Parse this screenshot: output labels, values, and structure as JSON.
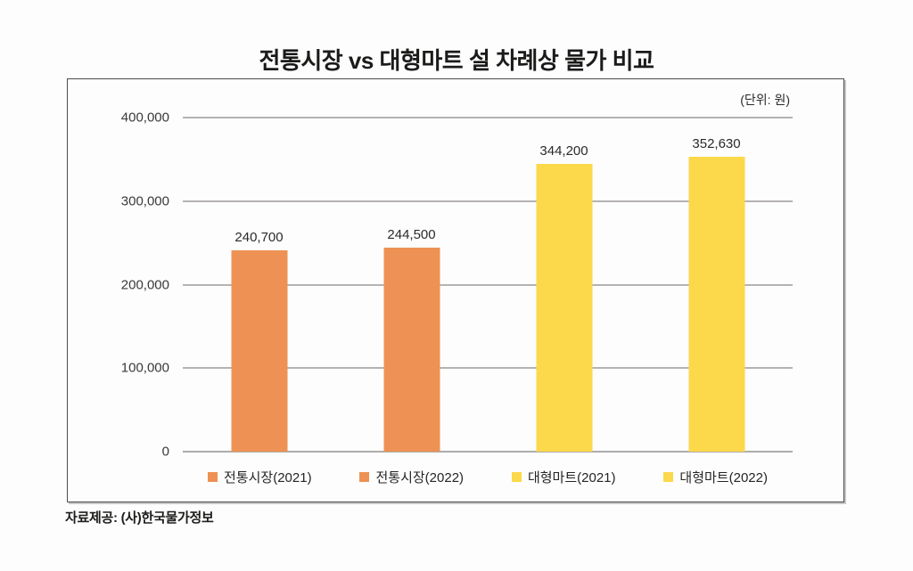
{
  "chart_data": {
    "type": "bar",
    "title": "전통시장 vs 대형마트 설 차례상 물가 비교",
    "unit_label": "(단위: 원)",
    "categories": [
      "전통시장(2021)",
      "전통시장(2022)",
      "대형마트(2021)",
      "대형마트(2022)"
    ],
    "values": [
      240700,
      244500,
      344200,
      352630
    ],
    "value_labels": [
      "240,700",
      "244,500",
      "344,200",
      "352,630"
    ],
    "bar_colors": [
      "#ED9254",
      "#ED9254",
      "#FCD84B",
      "#FCD84B"
    ],
    "ylim": [
      0,
      400000
    ],
    "yticks": [
      0,
      100000,
      200000,
      300000,
      400000
    ],
    "ytick_labels": [
      "0",
      "100,000",
      "200,000",
      "300,000",
      "400,000"
    ],
    "grid": true,
    "legend_position": "bottom",
    "source": "자료제공: (사)한국물가정보"
  },
  "colors": {
    "orange": "#ED9254",
    "yellow": "#FCD84B",
    "gridline": "#B5B3B2",
    "frame_border": "#4E4C4C",
    "text": "#1C1B1A",
    "background": "#FDFDFD"
  }
}
